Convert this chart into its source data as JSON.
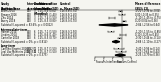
{
  "short_term": {
    "label": "Short-term",
    "studies": [
      {
        "name": "Alam 2014",
        "int_n": 940,
        "dur": 3,
        "int_str": "125, 8.6 (0.80)",
        "ctrl_str": "126 8.6(0.74)",
        "md": -0.2,
        "ci_lo": -0.36,
        "ci_hi": -0.04,
        "md_str": "-0.20 (-0.36 to -0.04)"
      },
      {
        "name": "Brewer 2016",
        "int_n": 940,
        "dur": 3,
        "int_str": "125, 8.5 (1.40)",
        "ctrl_str": "126 8.5(1.40)",
        "md": 0.0,
        "ci_lo": -0.35,
        "ci_hi": 0.35,
        "md_str": "0.00 (-0.35 to 0.35)"
      },
      {
        "name": "Zhu 2014",
        "int_n": 940,
        "dur": 3,
        "int_str": "125, 7.4 (1.50)",
        "ctrl_str": "126 8.5(1.50)",
        "md": -1.1,
        "ci_lo": -1.45,
        "ci_hi": -0.75,
        "md_str": "-1.10 (-1.45 to -0.75)"
      },
      {
        "name": "Avery 2018",
        "int_n": 940,
        "dur": 3,
        "int_str": "125, 8.5 (0.80)",
        "ctrl_str": "126 8.3(0.70)",
        "md": 0.2,
        "ci_lo": 0.04,
        "ci_hi": 0.36,
        "md_str": "0.20 (0.04 to 0.36)"
      }
    ],
    "pooled": {
      "md": -0.84,
      "ci_lo": -2.56,
      "ci_hi": 0.64,
      "i2": "83.6%",
      "p": "0.0022",
      "md_str": "-0.84 (-2.56 to 0.64)"
    }
  },
  "intermediate_term": {
    "label": "Intermediate-term",
    "studies": [
      {
        "name": "Hamet 2014",
        "int_n": 940,
        "dur": 6,
        "int_str": "125, 7.1 (1.50)",
        "ctrl_str": "126 8.3(1.50)",
        "md": -1.2,
        "ci_lo": -1.55,
        "ci_hi": -0.85,
        "md_str": "-1.20 (-1.55 to -0.85)"
      },
      {
        "name": "Linden 2014",
        "int_n": 940,
        "dur": 6,
        "int_str": "125, 8.6 (1.40)",
        "ctrl_str": "126 8.5(1.40)",
        "md": 0.1,
        "ci_lo": -0.25,
        "ci_hi": 0.45,
        "md_str": "0.10 (-0.25 to 0.45)"
      },
      {
        "name": "Castellar 2018",
        "int_n": 940,
        "dur": 6,
        "int_str": "125, 8.5 (0.70)",
        "ctrl_str": "126 8.8(0.70)",
        "md": -0.3,
        "ci_lo": -0.46,
        "ci_hi": -0.14,
        "md_str": "-0.30 (-0.46 to -0.14)"
      }
    ],
    "pooled": {
      "md": -0.68,
      "ci_lo": -1.1,
      "ci_hi": -0.27,
      "i2": "0%",
      "p": "0.814",
      "md_str": "-0.68 (-1.10 to -0.27)"
    }
  },
  "long_term": {
    "label": "Long-term",
    "studies": [
      {
        "name": "Carrilho Negrini 2016 (52)",
        "int_n": 940,
        "dur": 12,
        "int_str": "125, 8.7 (1.50)",
        "ctrl_str": "126 9.1(1.50)",
        "md": -0.4,
        "ci_lo": -0.94,
        "ci_hi": 0.14,
        "md_str": "-0.40 (-0.94 to 0.14)"
      },
      {
        "name": "Leal Vaz Monteiro 2016 (52)",
        "int_n": 940,
        "dur": 12,
        "int_str": "125, 8.7 (1.50)",
        "ctrl_str": "126 8.8(1.50)",
        "md": -0.1,
        "ci_lo": -0.64,
        "ci_hi": 0.44,
        "md_str": "-0.10 (-0.64 to 0.44)"
      }
    ],
    "pooled": {
      "md": -0.25,
      "ci_lo": -0.79,
      "ci_hi": 0.36,
      "i2": "0%",
      "p": "0.375",
      "md_str": "-0.25 (-0.79 to 0.36)"
    }
  },
  "xmin": -3,
  "xmax": 1,
  "xticks": [
    -3,
    -2,
    -1,
    0,
    1
  ],
  "xlabel_left": "Favours Intervention",
  "xlabel_right": "Favours Control",
  "bg_color": "#f5f5f0"
}
